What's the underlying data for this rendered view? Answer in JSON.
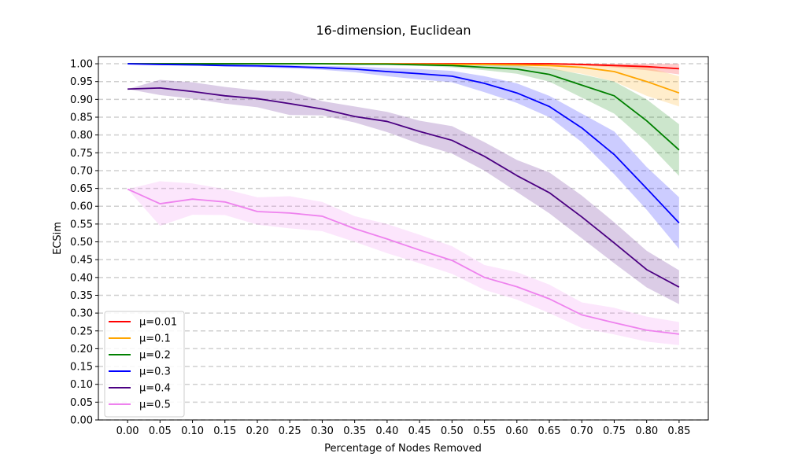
{
  "chart_data": {
    "type": "line",
    "title": "16-dimension, Euclidean",
    "xlabel": "Percentage of Nodes Removed",
    "ylabel": "ECSim",
    "x": [
      0.0,
      0.05,
      0.1,
      0.15,
      0.2,
      0.25,
      0.3,
      0.35,
      0.4,
      0.45,
      0.5,
      0.55,
      0.6,
      0.65,
      0.7,
      0.75,
      0.8,
      0.85
    ],
    "x_tick_labels": [
      "0.00",
      "0.05",
      "0.10",
      "0.15",
      "0.20",
      "0.25",
      "0.30",
      "0.35",
      "0.40",
      "0.45",
      "0.50",
      "0.55",
      "0.60",
      "0.65",
      "0.70",
      "0.75",
      "0.80",
      "0.85"
    ],
    "xlim": [
      -0.045,
      0.895
    ],
    "ylim": [
      0.0,
      1.02
    ],
    "y_ticks": [
      0.0,
      0.05,
      0.1,
      0.15,
      0.2,
      0.25,
      0.3,
      0.35,
      0.4,
      0.45,
      0.5,
      0.55,
      0.6,
      0.65,
      0.7,
      0.75,
      0.8,
      0.85,
      0.9,
      0.95,
      1.0
    ],
    "y_tick_labels": [
      "0.00",
      "0.05",
      "0.10",
      "0.15",
      "0.20",
      "0.25",
      "0.30",
      "0.35",
      "0.40",
      "0.45",
      "0.50",
      "0.55",
      "0.60",
      "0.65",
      "0.70",
      "0.75",
      "0.80",
      "0.85",
      "0.90",
      "0.95",
      "1.00"
    ],
    "grid": "horizontal dashed",
    "legend_position": "lower-left",
    "series": [
      {
        "name": "μ=0.01",
        "color": "#ff0000",
        "values": [
          1.0,
          1.0,
          1.0,
          1.0,
          1.0,
          1.0,
          1.0,
          1.0,
          1.0,
          1.0,
          1.0,
          1.0,
          1.0,
          1.0,
          0.998,
          0.995,
          0.992,
          0.986
        ],
        "lower": [
          1.0,
          1.0,
          1.0,
          1.0,
          1.0,
          1.0,
          1.0,
          1.0,
          1.0,
          1.0,
          1.0,
          1.0,
          1.0,
          0.999,
          0.995,
          0.99,
          0.982,
          0.97
        ],
        "upper": [
          1.0,
          1.0,
          1.0,
          1.0,
          1.0,
          1.0,
          1.0,
          1.0,
          1.0,
          1.0,
          1.0,
          1.0,
          1.0,
          1.0,
          1.0,
          1.0,
          1.0,
          1.0
        ]
      },
      {
        "name": "μ=0.1",
        "color": "#ffa500",
        "values": [
          1.0,
          1.0,
          1.0,
          1.0,
          1.0,
          1.0,
          1.0,
          1.0,
          1.0,
          0.999,
          0.998,
          0.998,
          0.997,
          0.995,
          0.99,
          0.978,
          0.95,
          0.918
        ],
        "lower": [
          1.0,
          1.0,
          1.0,
          1.0,
          1.0,
          1.0,
          1.0,
          1.0,
          0.999,
          0.998,
          0.996,
          0.995,
          0.992,
          0.985,
          0.972,
          0.95,
          0.91,
          0.88
        ],
        "upper": [
          1.0,
          1.0,
          1.0,
          1.0,
          1.0,
          1.0,
          1.0,
          1.0,
          1.0,
          1.0,
          1.0,
          1.0,
          1.0,
          1.0,
          1.0,
          0.998,
          0.99,
          0.965
        ]
      },
      {
        "name": "μ=0.2",
        "color": "#008000",
        "values": [
          1.0,
          1.0,
          1.0,
          1.0,
          1.0,
          1.0,
          1.0,
          0.999,
          0.999,
          0.997,
          0.995,
          0.99,
          0.985,
          0.97,
          0.94,
          0.91,
          0.84,
          0.758
        ],
        "lower": [
          1.0,
          1.0,
          1.0,
          1.0,
          1.0,
          1.0,
          0.999,
          0.998,
          0.996,
          0.994,
          0.99,
          0.982,
          0.972,
          0.95,
          0.905,
          0.86,
          0.78,
          0.685
        ],
        "upper": [
          1.0,
          1.0,
          1.0,
          1.0,
          1.0,
          1.0,
          1.0,
          1.0,
          1.0,
          1.0,
          1.0,
          0.998,
          0.995,
          0.988,
          0.97,
          0.95,
          0.9,
          0.83
        ]
      },
      {
        "name": "μ=0.3",
        "color": "#0000ff",
        "values": [
          1.0,
          0.998,
          0.997,
          0.995,
          0.994,
          0.992,
          0.989,
          0.985,
          0.978,
          0.972,
          0.965,
          0.945,
          0.918,
          0.88,
          0.82,
          0.745,
          0.65,
          0.553
        ],
        "lower": [
          1.0,
          0.997,
          0.995,
          0.992,
          0.99,
          0.987,
          0.983,
          0.976,
          0.965,
          0.956,
          0.948,
          0.92,
          0.89,
          0.85,
          0.78,
          0.69,
          0.59,
          0.48
        ],
        "upper": [
          1.0,
          1.0,
          0.999,
          0.998,
          0.997,
          0.996,
          0.994,
          0.992,
          0.988,
          0.985,
          0.98,
          0.965,
          0.945,
          0.91,
          0.86,
          0.81,
          0.71,
          0.625
        ]
      },
      {
        "name": "μ=0.4",
        "color": "#4b0082",
        "values": [
          0.929,
          0.932,
          0.922,
          0.91,
          0.902,
          0.888,
          0.873,
          0.852,
          0.838,
          0.81,
          0.785,
          0.74,
          0.686,
          0.638,
          0.57,
          0.497,
          0.422,
          0.373
        ],
        "lower": [
          0.929,
          0.912,
          0.902,
          0.888,
          0.878,
          0.856,
          0.855,
          0.835,
          0.808,
          0.775,
          0.748,
          0.7,
          0.64,
          0.58,
          0.51,
          0.44,
          0.372,
          0.325
        ],
        "upper": [
          0.929,
          0.955,
          0.948,
          0.935,
          0.925,
          0.922,
          0.895,
          0.88,
          0.865,
          0.84,
          0.825,
          0.78,
          0.73,
          0.695,
          0.63,
          0.555,
          0.475,
          0.42
        ]
      },
      {
        "name": "μ=0.5",
        "color": "#ee82ee",
        "values": [
          0.648,
          0.607,
          0.62,
          0.612,
          0.585,
          0.581,
          0.572,
          0.537,
          0.508,
          0.477,
          0.448,
          0.4,
          0.374,
          0.34,
          0.295,
          0.273,
          0.252,
          0.241
        ],
        "lower": [
          0.648,
          0.545,
          0.576,
          0.575,
          0.548,
          0.538,
          0.53,
          0.5,
          0.468,
          0.44,
          0.41,
          0.365,
          0.338,
          0.3,
          0.258,
          0.24,
          0.22,
          0.21
        ],
        "upper": [
          0.648,
          0.67,
          0.664,
          0.648,
          0.625,
          0.628,
          0.612,
          0.572,
          0.55,
          0.52,
          0.488,
          0.435,
          0.415,
          0.38,
          0.33,
          0.315,
          0.29,
          0.275
        ]
      }
    ]
  }
}
